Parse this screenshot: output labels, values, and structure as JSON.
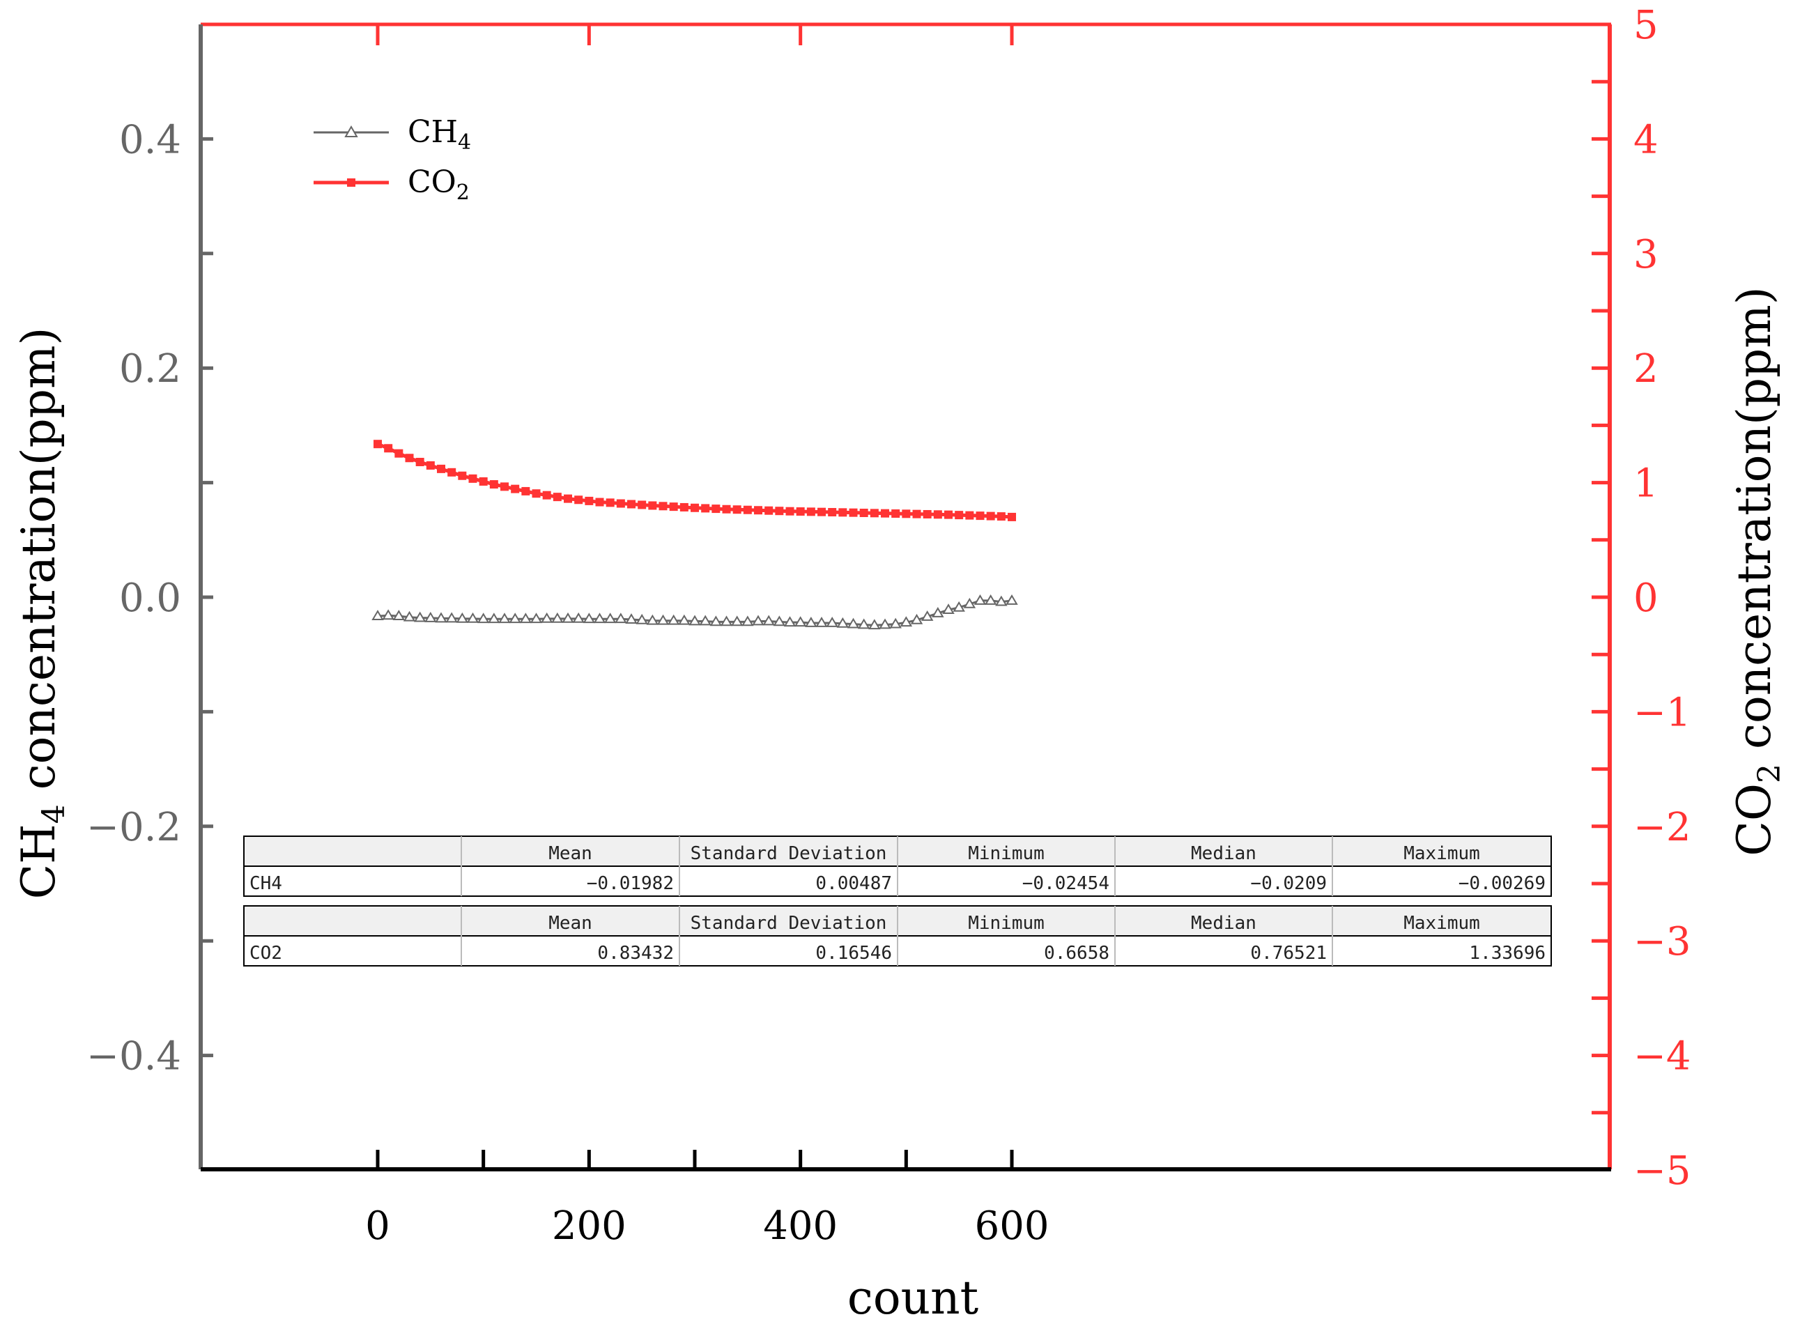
{
  "chart_data": {
    "type": "line",
    "xlabel": "count",
    "ylabel_left": {
      "base": "CH",
      "sub": "4",
      "rest": " concentration(ppm)"
    },
    "ylabel_right": {
      "base": "CO",
      "sub": "2",
      "rest": " concentration(ppm)"
    },
    "xlim": [
      -100,
      690
    ],
    "ylim_left": [
      -0.5,
      0.5
    ],
    "ylim_right": [
      -5,
      5
    ],
    "x_ticks": [
      0,
      200,
      400,
      600
    ],
    "x_tick_labels": [
      "0",
      "200",
      "400",
      "600"
    ],
    "y_left_ticks": [
      -0.4,
      -0.2,
      0.0,
      0.2,
      0.4
    ],
    "y_left_tick_labels": [
      "−0.4",
      "−0.2",
      "0.0",
      "0.2",
      "0.4"
    ],
    "y_right_ticks": [
      -5,
      -4,
      -3,
      -2,
      -1,
      0,
      1,
      2,
      3,
      4,
      5
    ],
    "y_right_tick_labels": [
      "−5",
      "−4",
      "−3",
      "−2",
      "−1",
      "0",
      "1",
      "2",
      "3",
      "4",
      "5"
    ],
    "grid": false,
    "legend_position": "top-left",
    "colors": {
      "ch4": "#666666",
      "co2": "#ff3333",
      "left_axis": "#666666",
      "right_axis": "#ff3333",
      "bottom_axis": "#000000"
    },
    "series": [
      {
        "name": "CH4",
        "legend": {
          "base": "CH",
          "sub": "4"
        },
        "axis": "left",
        "marker": "triangle-open",
        "x_start": 0,
        "x_step": 10,
        "values": [
          -0.0165,
          -0.016,
          -0.0165,
          -0.0175,
          -0.018,
          -0.0182,
          -0.0185,
          -0.0185,
          -0.0188,
          -0.0188,
          -0.019,
          -0.019,
          -0.019,
          -0.019,
          -0.019,
          -0.019,
          -0.0188,
          -0.0188,
          -0.0188,
          -0.0188,
          -0.019,
          -0.019,
          -0.019,
          -0.019,
          -0.0195,
          -0.02,
          -0.0205,
          -0.0205,
          -0.0205,
          -0.0205,
          -0.021,
          -0.021,
          -0.0215,
          -0.0215,
          -0.0215,
          -0.0215,
          -0.021,
          -0.021,
          -0.0215,
          -0.022,
          -0.022,
          -0.0225,
          -0.0225,
          -0.0225,
          -0.023,
          -0.0235,
          -0.024,
          -0.0245,
          -0.024,
          -0.0235,
          -0.022,
          -0.02,
          -0.017,
          -0.014,
          -0.011,
          -0.009,
          -0.006,
          -0.003,
          -0.003,
          -0.004,
          -0.003
        ]
      },
      {
        "name": "CO2",
        "legend": {
          "base": "CO",
          "sub": "2"
        },
        "axis": "right",
        "marker": "square-filled",
        "x_start": 0,
        "x_step": 10,
        "values": [
          1.337,
          1.3,
          1.255,
          1.215,
          1.18,
          1.15,
          1.12,
          1.09,
          1.06,
          1.035,
          1.01,
          0.985,
          0.965,
          0.945,
          0.925,
          0.905,
          0.89,
          0.875,
          0.86,
          0.85,
          0.84,
          0.83,
          0.825,
          0.818,
          0.812,
          0.806,
          0.8,
          0.795,
          0.79,
          0.785,
          0.78,
          0.776,
          0.772,
          0.768,
          0.765,
          0.762,
          0.759,
          0.756,
          0.753,
          0.75,
          0.748,
          0.746,
          0.744,
          0.742,
          0.74,
          0.738,
          0.736,
          0.734,
          0.732,
          0.73,
          0.728,
          0.726,
          0.724,
          0.722,
          0.72,
          0.717,
          0.714,
          0.711,
          0.708,
          0.705,
          0.7
        ]
      }
    ],
    "stats_tables": [
      {
        "headers": [
          "",
          "Mean",
          "Standard Deviation",
          "Minimum",
          "Median",
          "Maximum"
        ],
        "row": [
          "CH4",
          "−0.01982",
          "0.00487",
          "−0.02454",
          "−0.0209",
          "−0.00269"
        ]
      },
      {
        "headers": [
          "",
          "Mean",
          "Standard Deviation",
          "Minimum",
          "Median",
          "Maximum"
        ],
        "row": [
          "CO2",
          "0.83432",
          "0.16546",
          "0.6658",
          "0.76521",
          "1.33696"
        ]
      }
    ]
  }
}
